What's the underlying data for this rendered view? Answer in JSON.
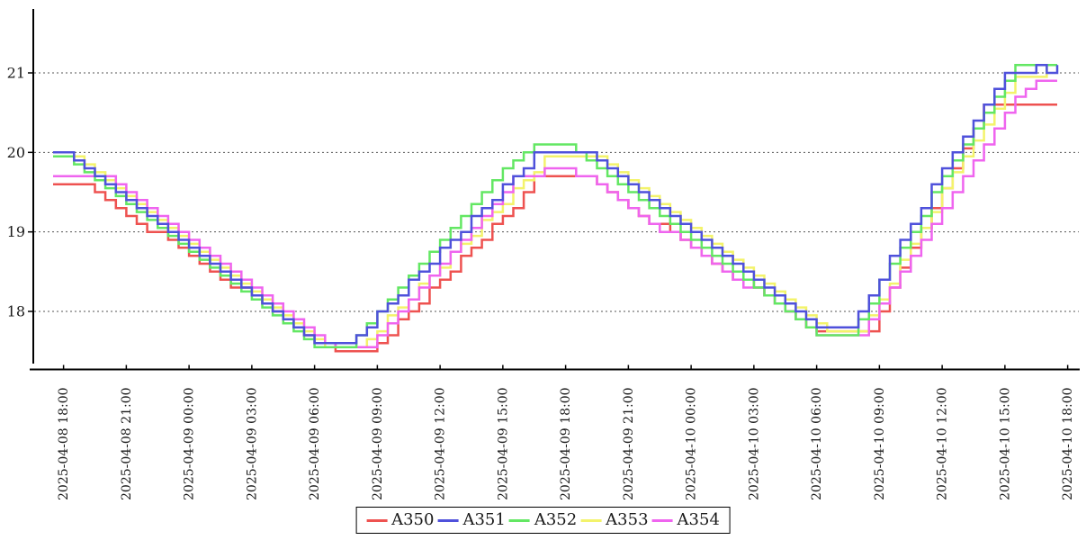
{
  "chart_data": {
    "type": "line",
    "step_mode": "after",
    "title": "",
    "x_start": "2025-04-08 17:30",
    "x_step_minutes": 30,
    "x_tick_labels": [
      "2025-04-08 18:00",
      "2025-04-08 21:00",
      "2025-04-09 00:00",
      "2025-04-09 03:00",
      "2025-04-09 06:00",
      "2025-04-09 09:00",
      "2025-04-09 12:00",
      "2025-04-09 15:00",
      "2025-04-09 18:00",
      "2025-04-09 21:00",
      "2025-04-10 00:00",
      "2025-04-10 03:00",
      "2025-04-10 06:00",
      "2025-04-10 09:00",
      "2025-04-10 12:00",
      "2025-04-10 15:00",
      "2025-04-10 18:00"
    ],
    "y_ticks": [
      18,
      19,
      20,
      21
    ],
    "y_range": [
      17.25,
      21.9
    ],
    "grid": "dotted-horizontal",
    "legend_position": "bottom-center",
    "legend_order": [
      "A350",
      "A351",
      "A352",
      "A353",
      "A354"
    ],
    "draw_order": [
      "A350",
      "A353",
      "A354",
      "A352",
      "A351"
    ],
    "series": [
      {
        "name": "A350",
        "color": "#ee5250",
        "values": [
          19.6,
          19.6,
          19.6,
          19.6,
          19.5,
          19.4,
          19.3,
          19.2,
          19.1,
          19.0,
          19.0,
          18.9,
          18.8,
          18.7,
          18.6,
          18.5,
          18.4,
          18.3,
          18.3,
          18.2,
          18.1,
          18.0,
          17.9,
          17.8,
          17.7,
          17.6,
          17.6,
          17.5,
          17.5,
          17.5,
          17.5,
          17.6,
          17.7,
          17.9,
          18.0,
          18.1,
          18.3,
          18.4,
          18.5,
          18.7,
          18.8,
          18.9,
          19.1,
          19.2,
          19.3,
          19.5,
          19.7,
          19.7,
          19.7,
          19.7,
          19.7,
          19.7,
          19.6,
          19.5,
          19.4,
          19.3,
          19.2,
          19.1,
          19.1,
          19.0,
          18.9,
          18.8,
          18.7,
          18.6,
          18.5,
          18.4,
          18.4,
          18.3,
          18.2,
          18.1,
          18.0,
          17.9,
          17.8,
          17.75,
          17.75,
          17.75,
          17.75,
          17.75,
          17.75,
          18.0,
          18.3,
          18.55,
          18.8,
          19.05,
          19.3,
          19.55,
          19.8,
          20.05,
          20.3,
          20.6,
          20.6,
          20.6,
          20.6,
          20.6,
          20.6,
          20.6,
          20.6
        ]
      },
      {
        "name": "A351",
        "color": "#4f51db",
        "values": [
          20.0,
          20.0,
          19.9,
          19.8,
          19.7,
          19.6,
          19.5,
          19.4,
          19.3,
          19.2,
          19.1,
          19.0,
          18.9,
          18.8,
          18.7,
          18.6,
          18.5,
          18.4,
          18.3,
          18.2,
          18.1,
          18.0,
          17.9,
          17.8,
          17.7,
          17.6,
          17.6,
          17.6,
          17.6,
          17.7,
          17.8,
          18.0,
          18.1,
          18.2,
          18.4,
          18.5,
          18.6,
          18.8,
          18.9,
          19.0,
          19.2,
          19.3,
          19.4,
          19.6,
          19.7,
          19.8,
          20.0,
          20.0,
          20.0,
          20.0,
          20.0,
          20.0,
          19.9,
          19.8,
          19.7,
          19.6,
          19.5,
          19.4,
          19.3,
          19.2,
          19.1,
          19.0,
          18.9,
          18.8,
          18.7,
          18.6,
          18.5,
          18.4,
          18.3,
          18.2,
          18.1,
          18.0,
          17.9,
          17.8,
          17.8,
          17.8,
          17.8,
          18.0,
          18.2,
          18.4,
          18.7,
          18.9,
          19.1,
          19.3,
          19.6,
          19.8,
          20.0,
          20.2,
          20.4,
          20.6,
          20.8,
          21.0,
          21.0,
          21.0,
          21.1,
          21.0,
          21.1
        ]
      },
      {
        "name": "A352",
        "color": "#63e763",
        "values": [
          19.95,
          19.95,
          19.85,
          19.75,
          19.65,
          19.55,
          19.45,
          19.35,
          19.25,
          19.15,
          19.05,
          18.95,
          18.85,
          18.75,
          18.65,
          18.55,
          18.45,
          18.35,
          18.25,
          18.15,
          18.05,
          17.95,
          17.85,
          17.75,
          17.65,
          17.55,
          17.55,
          17.55,
          17.55,
          17.7,
          17.85,
          18.0,
          18.15,
          18.3,
          18.45,
          18.6,
          18.75,
          18.9,
          19.05,
          19.2,
          19.35,
          19.5,
          19.65,
          19.8,
          19.9,
          20.0,
          20.1,
          20.1,
          20.1,
          20.1,
          20.0,
          19.9,
          19.8,
          19.7,
          19.6,
          19.5,
          19.4,
          19.3,
          19.2,
          19.1,
          19.0,
          18.9,
          18.8,
          18.7,
          18.6,
          18.5,
          18.4,
          18.3,
          18.2,
          18.1,
          18.0,
          17.9,
          17.8,
          17.7,
          17.7,
          17.7,
          17.7,
          17.9,
          18.1,
          18.4,
          18.6,
          18.8,
          19.0,
          19.2,
          19.5,
          19.7,
          19.9,
          20.1,
          20.3,
          20.5,
          20.7,
          20.9,
          21.1,
          21.1,
          21.1,
          21.1,
          21.1
        ]
      },
      {
        "name": "A353",
        "color": "#f3f36b",
        "values": [
          19.95,
          19.95,
          19.95,
          19.85,
          19.75,
          19.65,
          19.55,
          19.45,
          19.35,
          19.25,
          19.15,
          19.05,
          18.95,
          18.85,
          18.75,
          18.65,
          18.55,
          18.45,
          18.35,
          18.25,
          18.15,
          18.05,
          17.95,
          17.85,
          17.75,
          17.65,
          17.55,
          17.55,
          17.55,
          17.55,
          17.65,
          17.75,
          17.95,
          18.05,
          18.15,
          18.35,
          18.45,
          18.55,
          18.75,
          18.85,
          18.95,
          19.15,
          19.25,
          19.35,
          19.55,
          19.65,
          19.75,
          19.95,
          19.95,
          19.95,
          19.95,
          19.95,
          19.95,
          19.85,
          19.75,
          19.65,
          19.55,
          19.45,
          19.35,
          19.25,
          19.15,
          19.05,
          18.95,
          18.85,
          18.75,
          18.65,
          18.55,
          18.45,
          18.35,
          18.25,
          18.15,
          18.05,
          17.95,
          17.85,
          17.75,
          17.75,
          17.75,
          17.75,
          17.95,
          18.15,
          18.35,
          18.65,
          18.85,
          19.05,
          19.25,
          19.55,
          19.75,
          19.95,
          20.15,
          20.35,
          20.55,
          20.75,
          20.95,
          20.95,
          20.95,
          21.1,
          21.1
        ]
      },
      {
        "name": "A354",
        "color": "#ef64ef",
        "values": [
          19.7,
          19.7,
          19.7,
          19.7,
          19.7,
          19.7,
          19.6,
          19.5,
          19.4,
          19.3,
          19.2,
          19.1,
          19.0,
          18.9,
          18.8,
          18.7,
          18.6,
          18.5,
          18.4,
          18.3,
          18.2,
          18.1,
          18.0,
          17.9,
          17.8,
          17.7,
          17.6,
          17.55,
          17.55,
          17.55,
          17.55,
          17.7,
          17.85,
          18.0,
          18.15,
          18.3,
          18.45,
          18.6,
          18.75,
          18.9,
          19.05,
          19.2,
          19.35,
          19.5,
          19.7,
          19.7,
          19.7,
          19.8,
          19.8,
          19.8,
          19.7,
          19.7,
          19.6,
          19.5,
          19.4,
          19.3,
          19.2,
          19.1,
          19.0,
          19.0,
          18.9,
          18.8,
          18.7,
          18.6,
          18.5,
          18.4,
          18.3,
          18.3,
          18.2,
          18.1,
          18.0,
          17.9,
          17.8,
          17.7,
          17.7,
          17.7,
          17.7,
          17.7,
          17.9,
          18.1,
          18.3,
          18.5,
          18.7,
          18.9,
          19.1,
          19.3,
          19.5,
          19.7,
          19.9,
          20.1,
          20.3,
          20.5,
          20.7,
          20.8,
          20.9,
          20.9,
          20.9
        ]
      }
    ],
    "style": {
      "axis_color": "#000000",
      "grid_color": "#555555",
      "background": "#ffffff",
      "line_width": 2.5
    }
  }
}
